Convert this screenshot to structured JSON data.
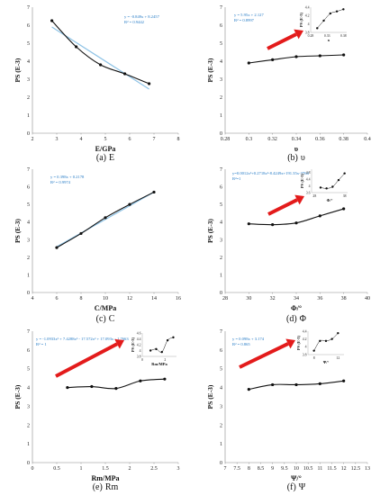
{
  "chart_data": [
    {
      "id": "a",
      "type": "line",
      "caption_letter": "(a)",
      "caption_text": "E",
      "xlabel": "E/GPa",
      "ylabel": "PS (E-3)",
      "xlim": [
        2,
        8
      ],
      "ylim": [
        0,
        7
      ],
      "xticks": [
        2,
        3,
        4,
        5,
        6,
        7,
        8
      ],
      "yticks": [
        0,
        1,
        2,
        3,
        4,
        5,
        6,
        7
      ],
      "x": [
        2.8,
        3.8,
        4.8,
        5.8,
        6.8
      ],
      "values": [
        6.25,
        4.8,
        3.8,
        3.3,
        2.75
      ],
      "trendline": {
        "x": [
          2.8,
          6.8
        ],
        "values": [
          5.9,
          2.45
        ]
      },
      "equation": [
        "y = -0.849x + 8.2457",
        "R² = 0.9442"
      ]
    },
    {
      "id": "b",
      "type": "line",
      "caption_letter": "(b)",
      "caption_text": "υ",
      "xlabel": "υ",
      "ylabel": "PS (E-3)",
      "xlim": [
        0.28,
        0.4
      ],
      "ylim": [
        0,
        7
      ],
      "xticks": [
        0.28,
        0.3,
        0.32,
        0.34,
        0.36,
        0.38,
        0.4
      ],
      "yticks": [
        0,
        1,
        2,
        3,
        4,
        5,
        6,
        7
      ],
      "x": [
        0.3,
        0.32,
        0.34,
        0.36,
        0.38
      ],
      "values": [
        3.9,
        4.08,
        4.25,
        4.3,
        4.35
      ],
      "equation": [
        "y = 5.95x + 2.127",
        "R² = 0.8997"
      ],
      "inset": {
        "xlabel": "υ",
        "ylabel": "PS (E-3)",
        "xlim": [
          0.28,
          0.39
        ],
        "ylim": [
          3.8,
          4.4
        ],
        "xticks": [
          0.28,
          0.33,
          0.38
        ],
        "yticks": [
          3.8,
          4.0,
          4.2,
          4.4
        ],
        "x": [
          0.3,
          0.32,
          0.34,
          0.36,
          0.38
        ],
        "values": [
          3.9,
          4.08,
          4.25,
          4.3,
          4.35
        ]
      }
    },
    {
      "id": "c",
      "type": "line",
      "caption_letter": "(c)",
      "caption_text": "C",
      "xlabel": "C/MPa",
      "ylabel": "PS (E-3)",
      "xlim": [
        4,
        16
      ],
      "ylim": [
        0,
        7
      ],
      "xticks": [
        4,
        6,
        8,
        10,
        12,
        14,
        16
      ],
      "yticks": [
        0,
        1,
        2,
        3,
        4,
        5,
        6,
        7
      ],
      "x": [
        6,
        8,
        10,
        12,
        14
      ],
      "values": [
        2.55,
        3.35,
        4.25,
        5.0,
        5.7
      ],
      "trendline": {
        "x": [
          6,
          14
        ],
        "values": [
          2.6,
          5.7
        ]
      },
      "equation": [
        "y = 0.398x + 0.2178",
        "R² = 0.9974"
      ]
    },
    {
      "id": "d",
      "type": "line",
      "caption_letter": "(d)",
      "caption_text": "Φ",
      "xlabel": "Φ/°",
      "ylabel": "PS (E-3)",
      "xlim": [
        28,
        40
      ],
      "ylim": [
        0,
        7
      ],
      "xticks": [
        28,
        30,
        32,
        34,
        36,
        38,
        40
      ],
      "yticks": [
        0,
        1,
        2,
        3,
        4,
        5,
        6,
        7
      ],
      "x": [
        30,
        32,
        34,
        36,
        38
      ],
      "values": [
        3.9,
        3.85,
        3.95,
        4.35,
        4.75
      ],
      "equation": [
        "y=0.0012x³+0.2718x²-8.4249x+191.35x-3764",
        "R²=1"
      ],
      "inset": {
        "xlabel": "Φ/°",
        "ylabel": "PS (E-3)",
        "xlim": [
          27,
          39
        ],
        "ylim": [
          3.6,
          5.0
        ],
        "xticks": [
          28,
          38
        ],
        "yticks": [
          3.6,
          4.0,
          4.4,
          4.8
        ],
        "x": [
          30,
          32,
          34,
          36,
          38
        ],
        "values": [
          3.9,
          3.85,
          3.95,
          4.35,
          4.75
        ]
      }
    },
    {
      "id": "e",
      "type": "line",
      "caption_letter": "(e)",
      "caption_text": "Rm",
      "xlabel": "Rm/MPa",
      "ylabel": "PS (E-3)",
      "xlim": [
        0,
        3
      ],
      "ylim": [
        0,
        7
      ],
      "xticks": [
        0,
        0.5,
        1,
        1.5,
        2,
        2.5,
        3
      ],
      "yticks": [
        0,
        1,
        2,
        3,
        4,
        5,
        6,
        7
      ],
      "x": [
        0.72,
        1.22,
        1.72,
        2.22,
        2.72
      ],
      "values": [
        4.0,
        4.05,
        3.95,
        4.35,
        4.45
      ],
      "equation": [
        "y = -1.0933x³ + 7.4288x² - 17.572x² + 17.093x - 1.7663",
        "R² = 1"
      ],
      "inset": {
        "xlabel": "Rm/MPa",
        "ylabel": "PS (E-3)",
        "xlim": [
          0,
          3
        ],
        "ylim": [
          3.8,
          4.6
        ],
        "xticks": [
          0,
          2
        ],
        "yticks": [
          3.8,
          4.0,
          4.2,
          4.4,
          4.6
        ],
        "x": [
          0.72,
          1.22,
          1.72,
          2.22,
          2.72
        ],
        "values": [
          4.0,
          4.05,
          3.95,
          4.35,
          4.45
        ]
      }
    },
    {
      "id": "f",
      "type": "line",
      "caption_letter": "(f)",
      "caption_text": "Ψ",
      "xlabel": "Ψ/°",
      "ylabel": "PS (E-3)",
      "xlim": [
        7,
        13
      ],
      "ylim": [
        0,
        7
      ],
      "xticks": [
        7,
        7.5,
        8,
        8.5,
        9,
        9.5,
        10,
        10.5,
        11,
        11.5,
        12,
        12.5,
        13
      ],
      "yticks": [
        0,
        1,
        2,
        3,
        4,
        5,
        6,
        7
      ],
      "x": [
        8,
        9,
        10,
        11,
        12
      ],
      "values": [
        3.9,
        4.15,
        4.15,
        4.2,
        4.35
      ],
      "equation": [
        "y = 0.098x + 3.174",
        "R² = 0.865"
      ],
      "inset": {
        "xlabel": "Ψ/°",
        "ylabel": "PS (E-3)",
        "xlim": [
          7,
          13
        ],
        "ylim": [
          3.8,
          4.4
        ],
        "xticks": [
          8,
          12
        ],
        "yticks": [
          3.8,
          4.0,
          4.2,
          4.4
        ],
        "x": [
          8,
          9,
          10,
          11,
          12
        ],
        "values": [
          3.9,
          4.15,
          4.15,
          4.2,
          4.35
        ]
      }
    }
  ],
  "colors": {
    "line": "#111111",
    "trendline": "#8ec3e6",
    "equation": "#1f77c4",
    "arrow": "#e31b1b"
  }
}
